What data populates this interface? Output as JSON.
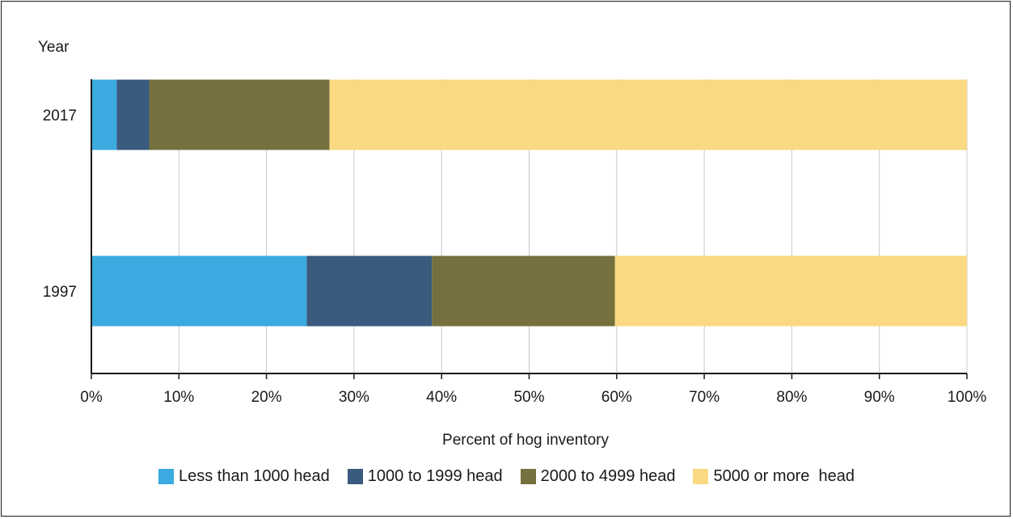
{
  "chart_data": {
    "type": "bar",
    "orientation": "horizontal",
    "stacked": true,
    "ylabel": "Year",
    "xlabel": "Percent of hog inventory",
    "categories": [
      "2017",
      "1997"
    ],
    "series": [
      {
        "name": "Less than 1000 head",
        "color": "#3AAAE1",
        "values": [
          2.9,
          24.6
        ]
      },
      {
        "name": "1000 to 1999 head",
        "color": "#3A5A7E",
        "values": [
          3.7,
          14.3
        ]
      },
      {
        "name": "2000 to 4999 head",
        "color": "#75703D",
        "values": [
          20.6,
          20.9
        ]
      },
      {
        "name": "5000 or more  head",
        "color": "#FAD982",
        "values": [
          72.8,
          40.2
        ]
      }
    ],
    "xlim": [
      0,
      100
    ],
    "x_ticks": [
      "0%",
      "10%",
      "20%",
      "30%",
      "40%",
      "50%",
      "60%",
      "70%",
      "80%",
      "90%",
      "100%"
    ],
    "grid": "vertical",
    "legend_position": "bottom"
  }
}
